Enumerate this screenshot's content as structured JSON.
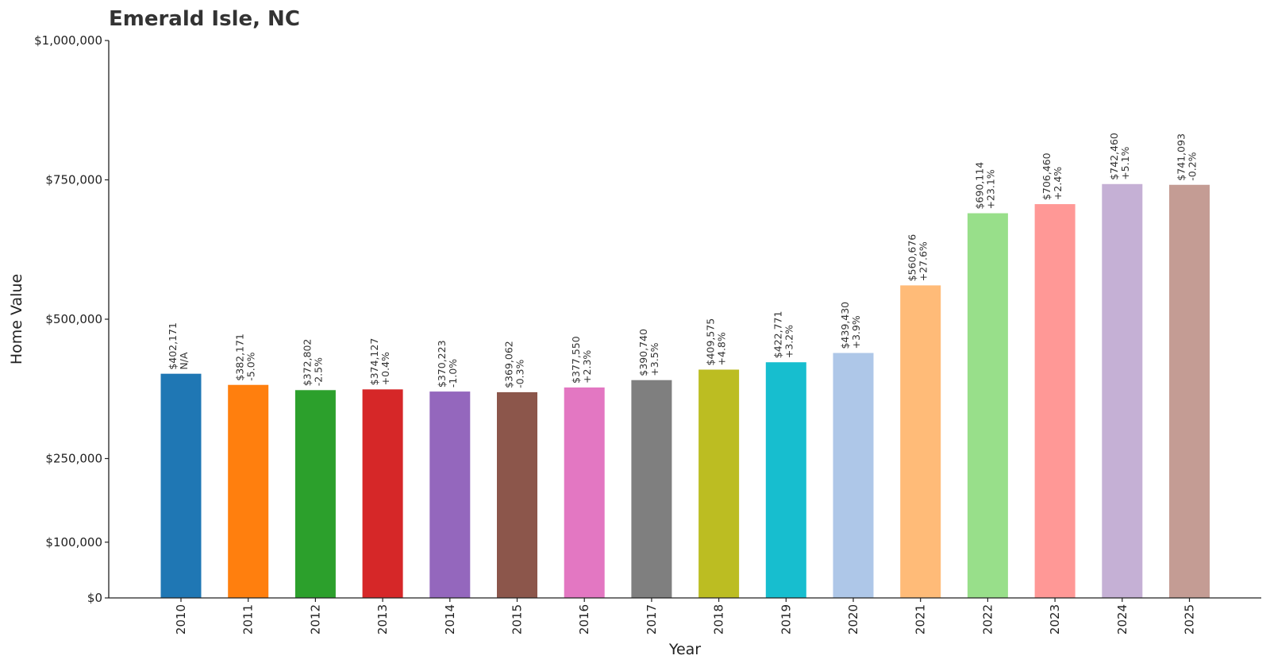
{
  "chart_data": {
    "type": "bar",
    "title": "Emerald Isle, NC",
    "xlabel": "Year",
    "ylabel": "Home Value",
    "ylim": [
      0,
      1000000
    ],
    "y_ticks": [
      {
        "value": 0,
        "label": "$0"
      },
      {
        "value": 100000,
        "label": "$100,000"
      },
      {
        "value": 250000,
        "label": "$250,000"
      },
      {
        "value": 500000,
        "label": "$500,000"
      },
      {
        "value": 750000,
        "label": "$750,000"
      },
      {
        "value": 1000000,
        "label": "$1,000,000"
      }
    ],
    "grid": false,
    "categories": [
      "2010",
      "2011",
      "2012",
      "2013",
      "2014",
      "2015",
      "2016",
      "2017",
      "2018",
      "2019",
      "2020",
      "2021",
      "2022",
      "2023",
      "2024",
      "2025"
    ],
    "values": [
      402171,
      382171,
      372802,
      374127,
      370223,
      369062,
      377550,
      390740,
      409575,
      422771,
      439430,
      560676,
      690114,
      706460,
      742460,
      741093
    ],
    "value_labels": [
      "$402,171",
      "$382,171",
      "$372,802",
      "$374,127",
      "$370,223",
      "$369,062",
      "$377,550",
      "$390,740",
      "$409,575",
      "$422,771",
      "$439,430",
      "$560,676",
      "$690,114",
      "$706,460",
      "$742,460",
      "$741,093"
    ],
    "change_labels": [
      "N/A",
      "-5.0%",
      "-2.5%",
      "+0.4%",
      "-1.0%",
      "-0.3%",
      "+2.3%",
      "+3.5%",
      "+4.8%",
      "+3.2%",
      "+3.9%",
      "+27.6%",
      "+23.1%",
      "+2.4%",
      "+5.1%",
      "-0.2%"
    ],
    "colors": [
      "#1f77b4",
      "#ff7f0e",
      "#2ca02c",
      "#d62728",
      "#9467bd",
      "#8c564b",
      "#e377c2",
      "#7f7f7f",
      "#bcbd22",
      "#17becf",
      "#aec7e8",
      "#ffbb78",
      "#98df8a",
      "#ff9896",
      "#c5b0d5",
      "#c49c94"
    ]
  }
}
